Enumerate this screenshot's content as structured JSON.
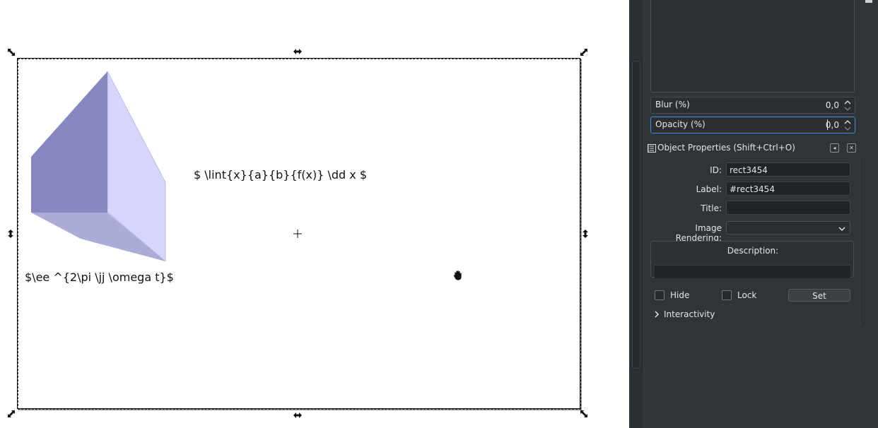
{
  "canvas": {
    "latex_integral": "$ \\lint{x}{a}{b}{f(x)} \\dd x $",
    "latex_exponent": "$\\ee ^{2\\pi \\jj \\omega t}$",
    "prism_colors": {
      "left_face": "#8787c0",
      "right_face": "#d6d6fb",
      "bottom_face": "#ababd8"
    }
  },
  "filters": {
    "blur": {
      "label": "Blur (%)",
      "value": "0,0"
    },
    "opacity": {
      "label": "Opacity (%)",
      "value": "0,0"
    }
  },
  "object_properties": {
    "title": "Object Properties (Shift+Ctrl+O)",
    "id_label": "ID:",
    "id_value": "rect3454",
    "label_label": "Label:",
    "label_value": "#rect3454",
    "title_label": "Title:",
    "title_value": "",
    "image_rendering_label": "Image Rendering:",
    "image_rendering_value": "",
    "description_label": "Description:",
    "hide_label": "Hide",
    "lock_label": "Lock",
    "set_label": "Set",
    "interactivity_label": "Interactivity"
  },
  "icons": {
    "header": "object-properties-icon",
    "float": "float-panel-icon",
    "close": "close-icon",
    "chevron": "chevron-right-icon"
  }
}
